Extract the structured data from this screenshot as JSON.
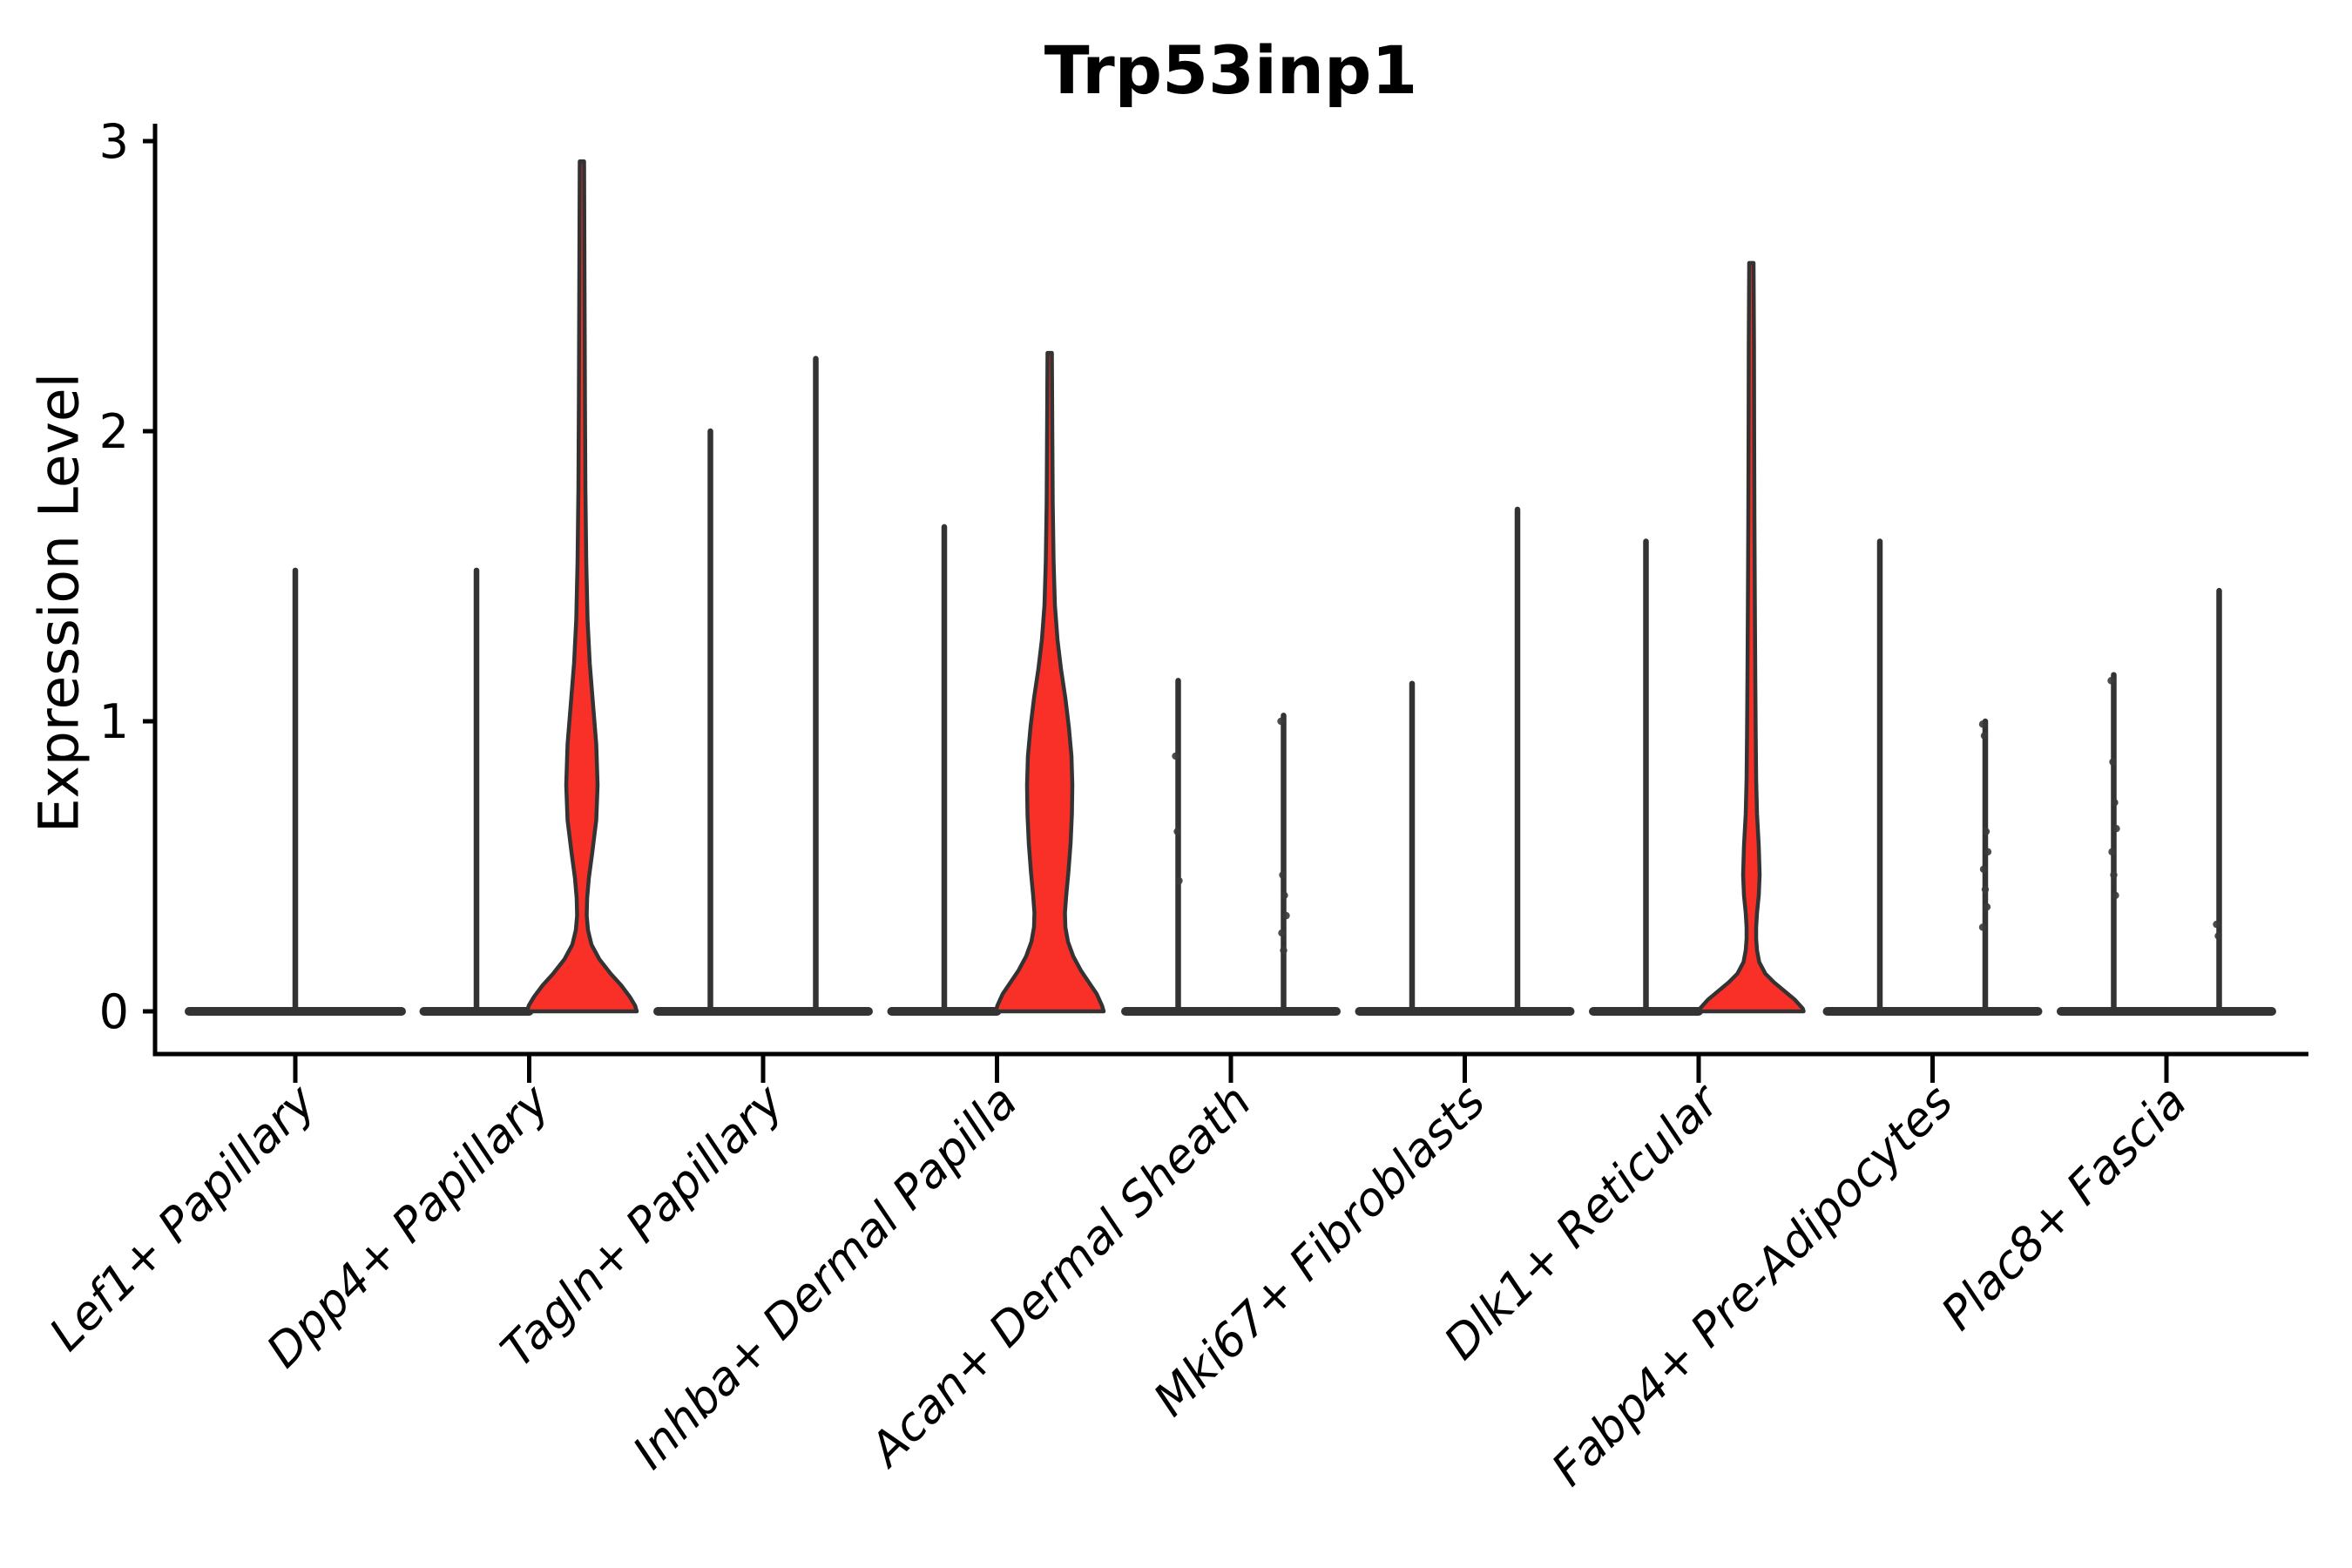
{
  "chart_data": {
    "type": "violin",
    "title": "Trp53inp1",
    "ylabel": "Expression Level",
    "xlabel": "",
    "yticks": [
      "0",
      "1",
      "2",
      "3"
    ],
    "ylim": [
      0,
      3
    ],
    "grid": false,
    "legend": "none",
    "colors": {
      "violin_fill": "#F93028",
      "violin_stroke": "#333333",
      "axis": "#000000",
      "point": "#3a3a3a",
      "text": "#000000"
    },
    "categories": [
      {
        "label": "Lef1+ Papillary",
        "violins": [
          {
            "pos": "center",
            "shape": "spike",
            "top": 1.52,
            "base_halfwidth": 122,
            "points": []
          }
        ]
      },
      {
        "label": "Dpp4+ Papillary",
        "violins": [
          {
            "pos": "left",
            "shape": "spike",
            "top": 1.52,
            "points": []
          },
          {
            "pos": "right",
            "shape": "density",
            "top": 2.93,
            "points": [],
            "profile": [
              [
                2.93,
                2.5
              ],
              [
                2.5,
                3
              ],
              [
                2.1,
                3.5
              ],
              [
                1.8,
                4
              ],
              [
                1.55,
                5
              ],
              [
                1.35,
                6.5
              ],
              [
                1.2,
                9
              ],
              [
                1.05,
                13
              ],
              [
                0.92,
                16.5
              ],
              [
                0.78,
                18
              ],
              [
                0.66,
                16.5
              ],
              [
                0.55,
                12
              ],
              [
                0.46,
                8
              ],
              [
                0.39,
                6
              ],
              [
                0.33,
                5.5
              ],
              [
                0.28,
                7
              ],
              [
                0.23,
                11
              ],
              [
                0.18,
                20
              ],
              [
                0.13,
                33
              ],
              [
                0.09,
                45
              ],
              [
                0.05,
                55
              ],
              [
                0.02,
                61
              ],
              [
                0,
                63
              ]
            ]
          }
        ]
      },
      {
        "label": "Tagln+ Papillary",
        "violins": [
          {
            "pos": "left",
            "shape": "spike",
            "top": 2.0,
            "points": []
          },
          {
            "pos": "right",
            "shape": "spike",
            "top": 2.25,
            "points": []
          }
        ]
      },
      {
        "label": "Inhba+ Dermal Papilla",
        "violins": [
          {
            "pos": "left",
            "shape": "spike",
            "top": 1.67,
            "points": []
          },
          {
            "pos": "right",
            "shape": "density",
            "top": 2.27,
            "points": [],
            "profile": [
              [
                2.27,
                2.5
              ],
              [
                2.0,
                3
              ],
              [
                1.75,
                3.5
              ],
              [
                1.55,
                4.5
              ],
              [
                1.4,
                6
              ],
              [
                1.28,
                9
              ],
              [
                1.18,
                13
              ],
              [
                1.08,
                18
              ],
              [
                0.98,
                22
              ],
              [
                0.88,
                25
              ],
              [
                0.78,
                26
              ],
              [
                0.68,
                25.5
              ],
              [
                0.58,
                24
              ],
              [
                0.48,
                21.5
              ],
              [
                0.4,
                19
              ],
              [
                0.34,
                17.5
              ],
              [
                0.29,
                18
              ],
              [
                0.24,
                21
              ],
              [
                0.19,
                27
              ],
              [
                0.14,
                36
              ],
              [
                0.1,
                45
              ],
              [
                0.06,
                54
              ],
              [
                0.02,
                60
              ],
              [
                0,
                62
              ]
            ]
          }
        ]
      },
      {
        "label": "Acan+ Dermal Sheath",
        "violins": [
          {
            "pos": "left",
            "shape": "spike",
            "top": 1.14,
            "points": [
              0.88,
              0.62,
              0.45
            ]
          },
          {
            "pos": "right",
            "shape": "spike",
            "top": 1.02,
            "points": [
              1.0,
              0.47,
              0.4,
              0.33,
              0.27,
              0.21
            ]
          }
        ]
      },
      {
        "label": "Mki67+ Fibroblasts",
        "violins": [
          {
            "pos": "left",
            "shape": "spike",
            "top": 1.13,
            "points": []
          },
          {
            "pos": "right",
            "shape": "spike",
            "top": 1.73,
            "points": []
          }
        ]
      },
      {
        "label": "Dlk1+ Reticular",
        "violins": [
          {
            "pos": "left",
            "shape": "spike",
            "top": 1.62,
            "points": []
          },
          {
            "pos": "right",
            "shape": "density",
            "top": 2.58,
            "points": [],
            "profile": [
              [
                2.58,
                2.5
              ],
              [
                2.3,
                3
              ],
              [
                2.0,
                3.2
              ],
              [
                1.7,
                3.5
              ],
              [
                1.4,
                4
              ],
              [
                1.15,
                4.5
              ],
              [
                0.95,
                5
              ],
              [
                0.8,
                5.5
              ],
              [
                0.68,
                6.5
              ],
              [
                0.57,
                8.5
              ],
              [
                0.47,
                9.5
              ],
              [
                0.4,
                8.5
              ],
              [
                0.34,
                6.5
              ],
              [
                0.29,
                5.5
              ],
              [
                0.25,
                5.5
              ],
              [
                0.21,
                6.5
              ],
              [
                0.17,
                9
              ],
              [
                0.13,
                16
              ],
              [
                0.1,
                26
              ],
              [
                0.07,
                38
              ],
              [
                0.04,
                50
              ],
              [
                0.01,
                59
              ],
              [
                0,
                60
              ]
            ]
          }
        ]
      },
      {
        "label": "Fabp4+ Pre-Adipocytes",
        "violins": [
          {
            "pos": "left",
            "shape": "spike",
            "top": 1.62,
            "points": []
          },
          {
            "pos": "right",
            "shape": "spike",
            "top": 1.0,
            "points": [
              0.99,
              0.95,
              0.62,
              0.55,
              0.49,
              0.42,
              0.36,
              0.29
            ]
          }
        ]
      },
      {
        "label": "Plac8+ Fascia",
        "violins": [
          {
            "pos": "left",
            "shape": "spike",
            "top": 1.16,
            "points": [
              1.14,
              0.86,
              0.72,
              0.63,
              0.55,
              0.47,
              0.4
            ]
          },
          {
            "pos": "right",
            "shape": "spike",
            "top": 1.45,
            "points": [
              0.3,
              0.26
            ]
          }
        ]
      }
    ]
  }
}
